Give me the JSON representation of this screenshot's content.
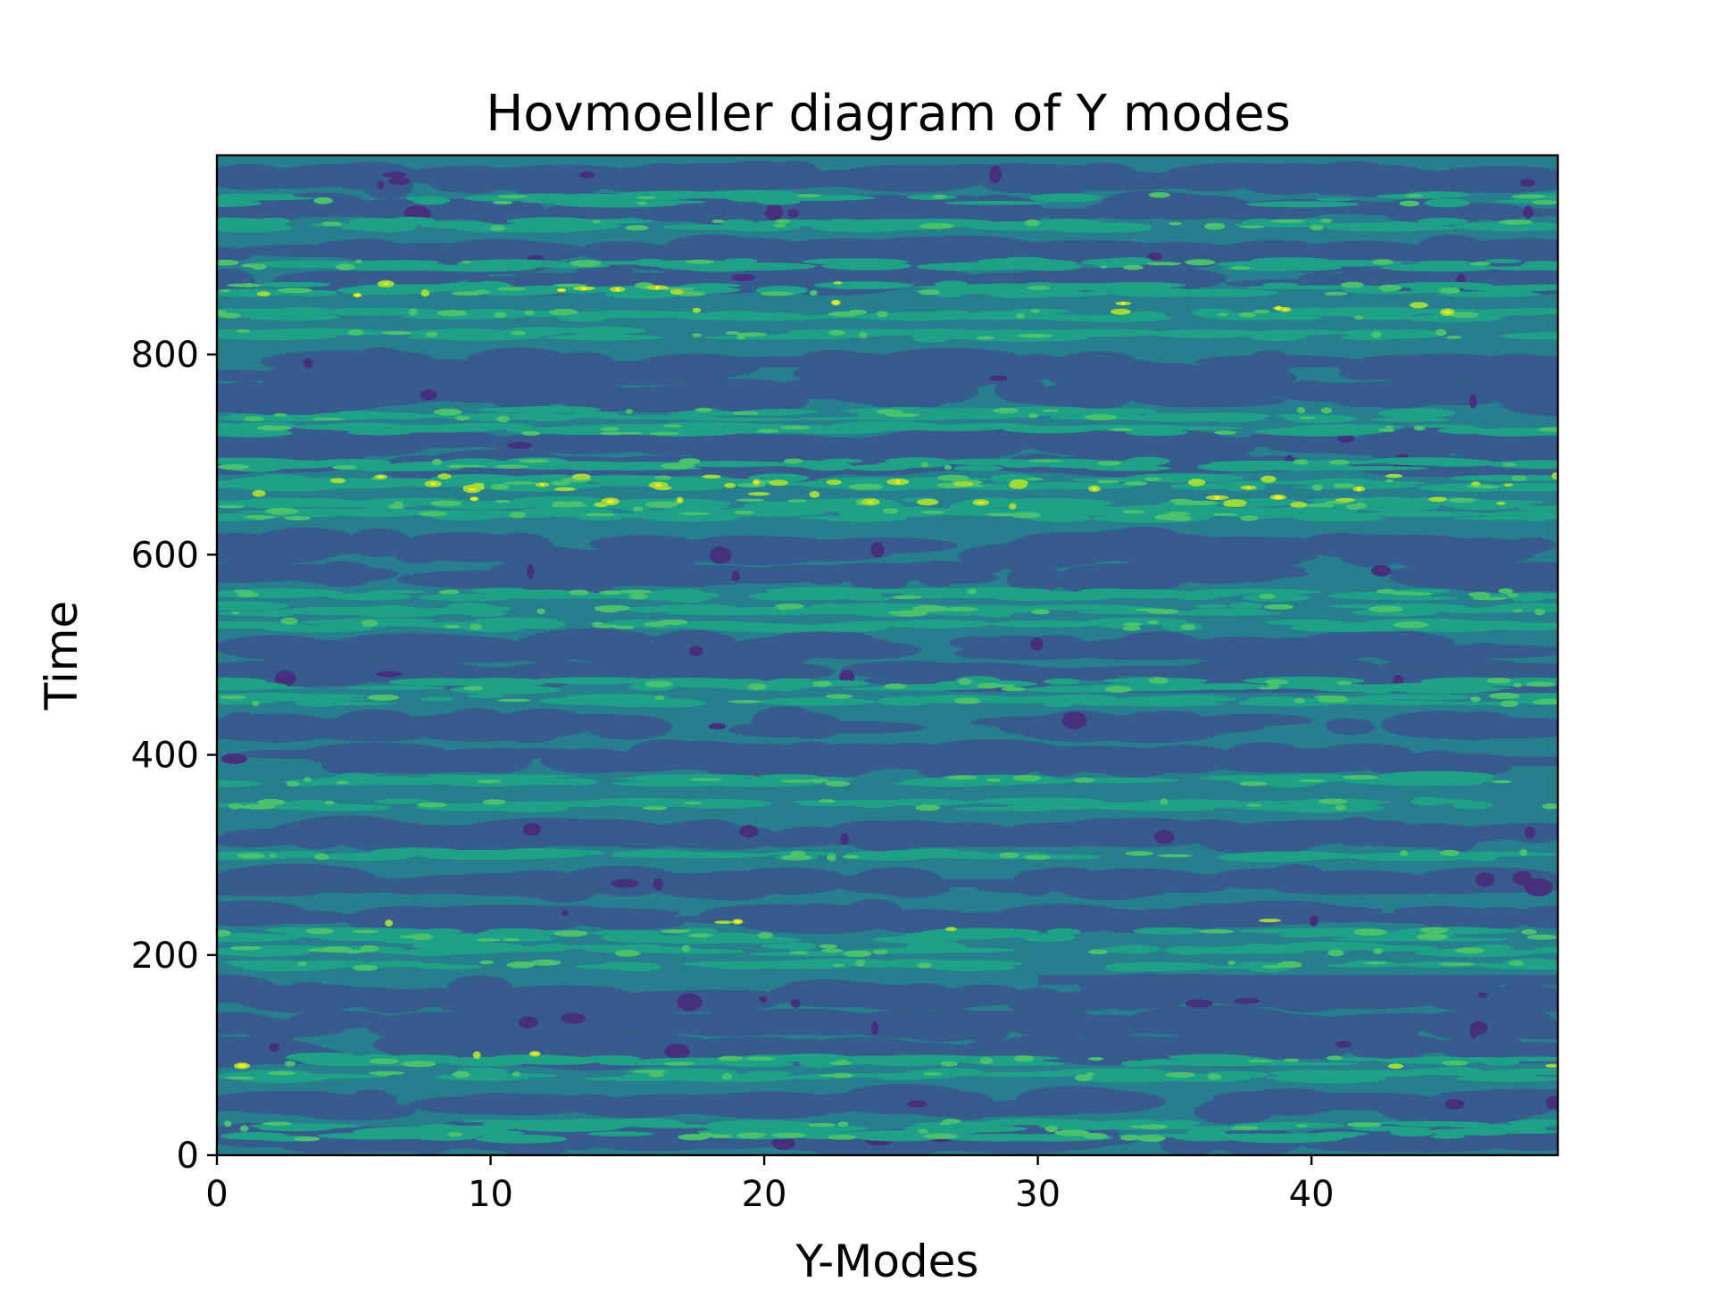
{
  "chart_data": {
    "type": "heatmap",
    "plot_kind": "filled-contour",
    "title": "Hovmoeller diagram of Y modes",
    "xlabel": "Y-Modes",
    "ylabel": "Time",
    "xlim": [
      0,
      49
    ],
    "ylim": [
      0,
      999
    ],
    "xticks": [
      0,
      10,
      20,
      30,
      40
    ],
    "yticks": [
      0,
      200,
      400,
      600,
      800
    ],
    "grid": false,
    "colormap": "viridis",
    "level_colors": [
      "#46307e",
      "#365c8d",
      "#277f8e",
      "#1fa187",
      "#4ac16d",
      "#a0da39",
      "#fde725"
    ],
    "background_level_color": "#277f8e",
    "colorbar": false
  }
}
